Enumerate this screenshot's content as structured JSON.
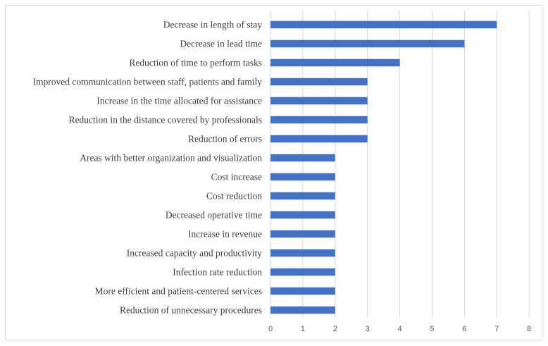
{
  "chart_data": {
    "type": "bar",
    "orientation": "horizontal",
    "title": "",
    "xlabel": "",
    "ylabel": "",
    "categories": [
      "Decrease in length of stay",
      "Decrease in lead time",
      "Reduction of time to perform tasks ",
      "Improved communication between staff, patients and family",
      "Increase in the time allocated for assistance",
      "Reduction in the distance covered by professionals ",
      "Reduction of errors",
      "Areas with better organization and visualization ",
      "Cost increase ",
      "Cost reduction",
      "Decreased operative time",
      "Increase in revenue",
      "Increased capacity and productivity",
      "Infection rate reduction",
      "More efficient and patient-centered services",
      "Reduction of unnecessary procedures"
    ],
    "values": [
      7,
      6,
      4,
      3,
      3,
      3,
      3,
      2,
      2,
      2,
      2,
      2,
      2,
      2,
      2,
      2
    ],
    "xlim": [
      0,
      8
    ],
    "xticks": [
      "0",
      "1",
      "2",
      "3",
      "4",
      "5",
      "6",
      "7",
      "8"
    ],
    "grid": true,
    "legend": "none",
    "bar_color": "#4472c4",
    "grid_color": "#d9d9d9"
  }
}
